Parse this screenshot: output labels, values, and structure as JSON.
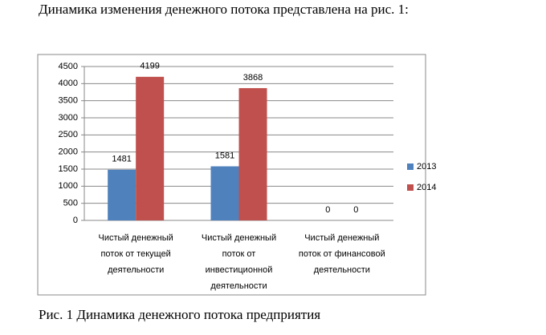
{
  "header": {
    "title": "Динамика изменения денежного потока представлена на рис. 1:"
  },
  "chart_data": {
    "type": "bar",
    "categories": [
      "Чистый денежный поток от текущей деятельности",
      "Чистый денежный поток от инвестиционной деятельности",
      "Чистый денежный поток от финансовой деятельности"
    ],
    "series": [
      {
        "name": "2013",
        "color": "#4f81bd",
        "values": [
          1481,
          1581,
          0
        ]
      },
      {
        "name": "2014",
        "color": "#c0504d",
        "values": [
          4199,
          3868,
          0
        ]
      }
    ],
    "ylim": [
      0,
      4500
    ],
    "yticks": [
      0,
      500,
      1000,
      1500,
      2000,
      2500,
      3000,
      3500,
      4000,
      4500
    ],
    "grid": true,
    "legend": "right"
  },
  "caption": {
    "text": "Рис. 1 Динамика денежного потока предприятия"
  }
}
